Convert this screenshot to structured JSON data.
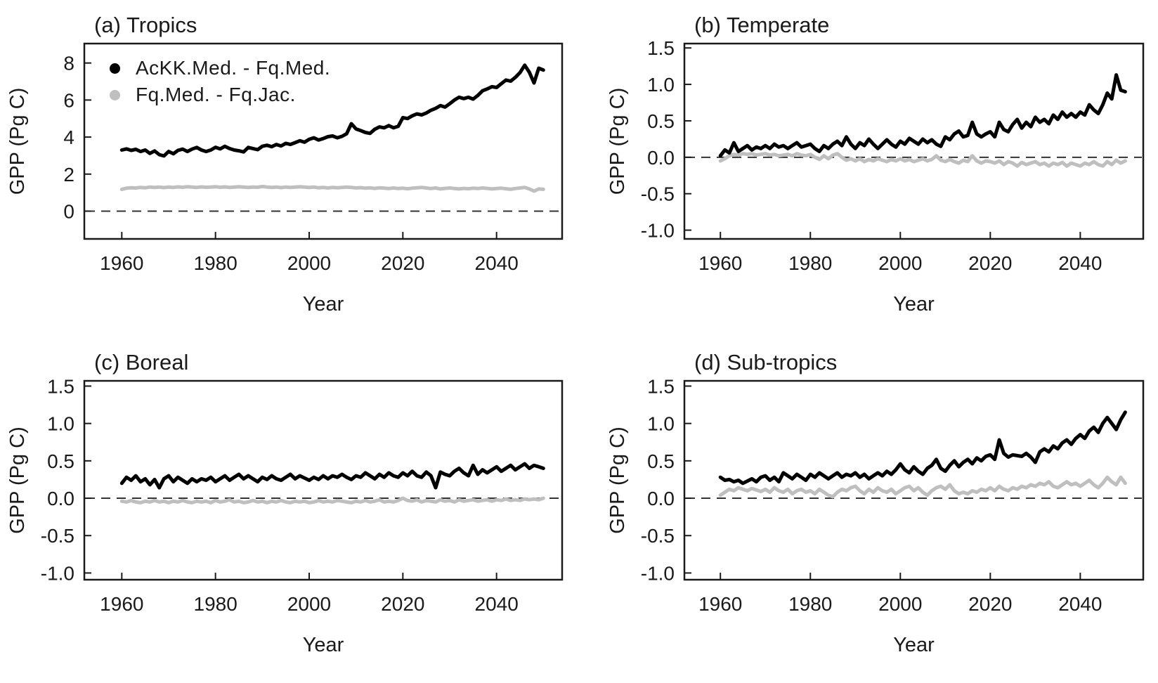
{
  "figure": {
    "background": "#ffffff",
    "text_color": "#1a1a1a",
    "axis_color": "#1a1a1a",
    "black_series_color": "#000000",
    "gray_series_color": "#bfbfbf"
  },
  "chart_data": [
    {
      "type": "line",
      "panel": "a",
      "title": "(a) Tropics",
      "xlabel": "Year",
      "ylabel": "GPP (Pg C)",
      "legend_visible": true,
      "legend_position": "top-left-inside",
      "grid": false,
      "zero_dashed_line": true,
      "x_start_year": 1960,
      "x_step_years": 1,
      "xlim": [
        1952,
        2054
      ],
      "ylim": [
        -1.5,
        9.05
      ],
      "x_ticks": [
        1960,
        1980,
        2000,
        2020,
        2040
      ],
      "x_tick_labels": [
        "1960",
        "1980",
        "2000",
        "2020",
        "2040"
      ],
      "y_ticks": [
        0,
        2,
        4,
        6,
        8
      ],
      "y_tick_labels": [
        "0",
        "2",
        "4",
        "6",
        "8"
      ],
      "series": [
        {
          "name": "Fq.Med. - Fq.Jac.",
          "color": "#bfbfbf",
          "values": [
            1.18,
            1.24,
            1.26,
            1.25,
            1.28,
            1.26,
            1.3,
            1.28,
            1.3,
            1.27,
            1.3,
            1.28,
            1.31,
            1.29,
            1.32,
            1.3,
            1.28,
            1.31,
            1.29,
            1.3,
            1.32,
            1.29,
            1.31,
            1.28,
            1.3,
            1.32,
            1.3,
            1.28,
            1.3,
            1.29,
            1.33,
            1.3,
            1.28,
            1.3,
            1.27,
            1.3,
            1.28,
            1.3,
            1.32,
            1.3,
            1.28,
            1.3,
            1.26,
            1.28,
            1.25,
            1.28,
            1.26,
            1.28,
            1.3,
            1.28,
            1.25,
            1.27,
            1.24,
            1.26,
            1.23,
            1.26,
            1.24,
            1.22,
            1.25,
            1.22,
            1.24,
            1.21,
            1.24,
            1.26,
            1.28,
            1.25,
            1.22,
            1.25,
            1.2,
            1.23,
            1.25,
            1.22,
            1.2,
            1.23,
            1.21,
            1.24,
            1.22,
            1.25,
            1.23,
            1.2,
            1.22,
            1.24,
            1.21,
            1.18,
            1.22,
            1.25,
            1.28,
            1.2,
            1.08,
            1.2,
            1.18
          ]
        },
        {
          "name": "AcKK.Med. - Fq.Med.",
          "color": "#000000",
          "values": [
            3.3,
            3.36,
            3.28,
            3.34,
            3.22,
            3.3,
            3.12,
            3.25,
            3.05,
            2.98,
            3.22,
            3.1,
            3.28,
            3.35,
            3.22,
            3.35,
            3.44,
            3.3,
            3.22,
            3.3,
            3.45,
            3.36,
            3.5,
            3.38,
            3.3,
            3.26,
            3.2,
            3.44,
            3.38,
            3.32,
            3.5,
            3.56,
            3.48,
            3.6,
            3.52,
            3.66,
            3.6,
            3.7,
            3.8,
            3.72,
            3.88,
            3.96,
            3.84,
            3.92,
            4.02,
            4.06,
            3.96,
            4.04,
            4.18,
            4.72,
            4.44,
            4.35,
            4.25,
            4.2,
            4.42,
            4.55,
            4.5,
            4.62,
            4.5,
            4.58,
            5.05,
            5.0,
            5.15,
            5.25,
            5.2,
            5.3,
            5.45,
            5.55,
            5.7,
            5.62,
            5.8,
            6.0,
            6.15,
            6.08,
            6.15,
            6.05,
            6.25,
            6.5,
            6.6,
            6.72,
            6.68,
            6.88,
            7.08,
            7.02,
            7.22,
            7.48,
            7.88,
            7.5,
            6.92,
            7.72,
            7.62
          ]
        }
      ]
    },
    {
      "type": "line",
      "panel": "b",
      "title": "(b) Temperate",
      "xlabel": "Year",
      "ylabel": "GPP (Pg C)",
      "legend_visible": false,
      "grid": false,
      "zero_dashed_line": true,
      "x_start_year": 1960,
      "x_step_years": 1,
      "xlim": [
        1952,
        2054
      ],
      "ylim": [
        -1.12,
        1.56
      ],
      "x_ticks": [
        1960,
        1980,
        2000,
        2020,
        2040
      ],
      "x_tick_labels": [
        "1960",
        "1980",
        "2000",
        "2020",
        "2040"
      ],
      "y_ticks": [
        -1.0,
        -0.5,
        0.0,
        0.5,
        1.0,
        1.5
      ],
      "y_tick_labels": [
        "-1.0",
        "-0.5",
        "0.0",
        "0.5",
        "1.0",
        "1.5"
      ],
      "series": [
        {
          "name": "Fq.Med. - Fq.Jac.",
          "color": "#bfbfbf",
          "values": [
            -0.05,
            -0.02,
            0.02,
            0.04,
            0.03,
            0.05,
            0.04,
            0.05,
            0.03,
            0.04,
            0.05,
            0.03,
            0.04,
            0.02,
            0.03,
            0.04,
            0.02,
            0.05,
            0.03,
            0.02,
            0.04,
            0.0,
            -0.03,
            0.02,
            -0.02,
            0.03,
            0.05,
            0.0,
            -0.04,
            -0.02,
            -0.05,
            -0.02,
            -0.06,
            -0.03,
            -0.05,
            -0.02,
            -0.04,
            -0.06,
            -0.03,
            -0.05,
            -0.02,
            -0.05,
            -0.03,
            -0.06,
            -0.04,
            -0.02,
            -0.05,
            -0.03,
            0.02,
            -0.04,
            -0.06,
            -0.03,
            -0.06,
            -0.08,
            -0.04,
            -0.06,
            0.02,
            -0.05,
            -0.08,
            -0.05,
            -0.06,
            -0.08,
            -0.05,
            -0.1,
            -0.06,
            -0.08,
            -0.12,
            -0.07,
            -0.1,
            -0.08,
            -0.06,
            -0.1,
            -0.08,
            -0.12,
            -0.08,
            -0.1,
            -0.07,
            -0.12,
            -0.08,
            -0.1,
            -0.12,
            -0.08,
            -0.1,
            -0.06,
            -0.1,
            -0.12,
            -0.06,
            -0.1,
            -0.04,
            -0.08,
            -0.05
          ]
        },
        {
          "name": "AcKK.Med. - Fq.Med.",
          "color": "#000000",
          "values": [
            0.02,
            0.1,
            0.06,
            0.2,
            0.08,
            0.12,
            0.16,
            0.1,
            0.14,
            0.12,
            0.16,
            0.12,
            0.18,
            0.14,
            0.16,
            0.12,
            0.16,
            0.2,
            0.14,
            0.16,
            0.18,
            0.12,
            0.08,
            0.16,
            0.12,
            0.18,
            0.22,
            0.16,
            0.28,
            0.18,
            0.12,
            0.2,
            0.16,
            0.25,
            0.18,
            0.12,
            0.18,
            0.24,
            0.18,
            0.14,
            0.22,
            0.18,
            0.26,
            0.22,
            0.18,
            0.25,
            0.2,
            0.24,
            0.18,
            0.15,
            0.28,
            0.24,
            0.32,
            0.36,
            0.28,
            0.3,
            0.48,
            0.32,
            0.28,
            0.32,
            0.35,
            0.28,
            0.48,
            0.38,
            0.35,
            0.45,
            0.52,
            0.4,
            0.48,
            0.42,
            0.55,
            0.48,
            0.52,
            0.46,
            0.58,
            0.52,
            0.62,
            0.55,
            0.6,
            0.55,
            0.62,
            0.58,
            0.72,
            0.65,
            0.6,
            0.72,
            0.88,
            0.8,
            1.13,
            0.92,
            0.9
          ]
        }
      ]
    },
    {
      "type": "line",
      "panel": "c",
      "title": "(c) Boreal",
      "xlabel": "Year",
      "ylabel": "GPP (Pg C)",
      "legend_visible": false,
      "grid": false,
      "zero_dashed_line": true,
      "x_start_year": 1960,
      "x_step_years": 1,
      "xlim": [
        1952,
        2054
      ],
      "ylim": [
        -1.09,
        1.57
      ],
      "x_ticks": [
        1960,
        1980,
        2000,
        2020,
        2040
      ],
      "x_tick_labels": [
        "1960",
        "1980",
        "2000",
        "2020",
        "2040"
      ],
      "y_ticks": [
        -1.0,
        -0.5,
        0.0,
        0.5,
        1.0,
        1.5
      ],
      "y_tick_labels": [
        "-1.0",
        "-0.5",
        "0.0",
        "0.5",
        "1.0",
        "1.5"
      ],
      "series": [
        {
          "name": "Fq.Med. - Fq.Jac.",
          "color": "#bfbfbf",
          "values": [
            -0.04,
            -0.05,
            -0.03,
            -0.05,
            -0.06,
            -0.04,
            -0.05,
            -0.03,
            -0.05,
            -0.04,
            -0.06,
            -0.04,
            -0.05,
            -0.03,
            -0.05,
            -0.06,
            -0.04,
            -0.05,
            -0.04,
            -0.06,
            -0.03,
            -0.05,
            -0.04,
            -0.02,
            -0.05,
            -0.04,
            -0.06,
            -0.05,
            -0.03,
            -0.05,
            -0.04,
            -0.06,
            -0.04,
            -0.05,
            -0.03,
            -0.05,
            -0.06,
            -0.04,
            -0.05,
            -0.04,
            -0.06,
            -0.05,
            -0.03,
            -0.05,
            -0.04,
            -0.05,
            -0.03,
            -0.04,
            -0.05,
            -0.06,
            -0.04,
            -0.05,
            -0.03,
            -0.05,
            -0.04,
            -0.02,
            -0.05,
            -0.04,
            -0.05,
            -0.03,
            0.0,
            -0.03,
            -0.04,
            -0.02,
            -0.05,
            -0.03,
            -0.04,
            -0.05,
            -0.02,
            -0.04,
            -0.03,
            -0.05,
            -0.02,
            -0.04,
            -0.03,
            -0.02,
            -0.04,
            -0.03,
            -0.02,
            -0.04,
            -0.02,
            -0.03,
            -0.01,
            -0.03,
            -0.02,
            -0.03,
            -0.01,
            -0.02,
            -0.01,
            -0.02,
            0.0
          ]
        },
        {
          "name": "AcKK.Med. - Fq.Med.",
          "color": "#000000",
          "values": [
            0.2,
            0.28,
            0.24,
            0.3,
            0.22,
            0.26,
            0.18,
            0.25,
            0.14,
            0.26,
            0.3,
            0.22,
            0.28,
            0.24,
            0.2,
            0.26,
            0.22,
            0.26,
            0.24,
            0.28,
            0.22,
            0.26,
            0.3,
            0.24,
            0.28,
            0.32,
            0.26,
            0.3,
            0.26,
            0.22,
            0.28,
            0.25,
            0.3,
            0.26,
            0.24,
            0.28,
            0.32,
            0.26,
            0.3,
            0.27,
            0.24,
            0.28,
            0.25,
            0.3,
            0.26,
            0.3,
            0.28,
            0.32,
            0.28,
            0.25,
            0.3,
            0.28,
            0.34,
            0.3,
            0.26,
            0.32,
            0.28,
            0.34,
            0.3,
            0.28,
            0.34,
            0.3,
            0.36,
            0.3,
            0.28,
            0.35,
            0.3,
            0.14,
            0.35,
            0.32,
            0.3,
            0.36,
            0.4,
            0.34,
            0.3,
            0.44,
            0.32,
            0.38,
            0.34,
            0.38,
            0.42,
            0.36,
            0.4,
            0.44,
            0.38,
            0.42,
            0.46,
            0.4,
            0.44,
            0.42,
            0.4
          ]
        }
      ]
    },
    {
      "type": "line",
      "panel": "d",
      "title": "(d) Sub-tropics",
      "xlabel": "Year",
      "ylabel": "GPP (Pg C)",
      "legend_visible": false,
      "grid": false,
      "zero_dashed_line": true,
      "x_start_year": 1960,
      "x_step_years": 1,
      "xlim": [
        1952,
        2054
      ],
      "ylim": [
        -1.09,
        1.57
      ],
      "x_ticks": [
        1960,
        1980,
        2000,
        2020,
        2040
      ],
      "x_tick_labels": [
        "1960",
        "1980",
        "2000",
        "2020",
        "2040"
      ],
      "y_ticks": [
        -1.0,
        -0.5,
        0.0,
        0.5,
        1.0,
        1.5
      ],
      "y_tick_labels": [
        "-1.0",
        "-0.5",
        "0.0",
        "0.5",
        "1.0",
        "1.5"
      ],
      "series": [
        {
          "name": "Fq.Med. - Fq.Jac.",
          "color": "#bfbfbf",
          "values": [
            0.04,
            0.08,
            0.12,
            0.1,
            0.14,
            0.12,
            0.1,
            0.13,
            0.11,
            0.09,
            0.12,
            0.08,
            0.14,
            0.1,
            0.08,
            0.12,
            0.06,
            0.1,
            0.12,
            0.08,
            0.1,
            0.06,
            0.12,
            0.08,
            0.04,
            0.02,
            0.08,
            0.12,
            0.1,
            0.14,
            0.16,
            0.1,
            0.06,
            0.12,
            0.08,
            0.14,
            0.1,
            0.08,
            0.12,
            0.06,
            0.1,
            0.14,
            0.16,
            0.1,
            0.14,
            0.08,
            0.04,
            0.1,
            0.14,
            0.16,
            0.12,
            0.18,
            0.1,
            0.06,
            0.08,
            0.06,
            0.1,
            0.08,
            0.12,
            0.1,
            0.14,
            0.1,
            0.16,
            0.12,
            0.1,
            0.14,
            0.12,
            0.16,
            0.14,
            0.18,
            0.16,
            0.2,
            0.18,
            0.22,
            0.16,
            0.14,
            0.18,
            0.22,
            0.18,
            0.2,
            0.16,
            0.2,
            0.24,
            0.18,
            0.14,
            0.2,
            0.28,
            0.22,
            0.18,
            0.28,
            0.2
          ]
        },
        {
          "name": "AcKK.Med. - Fq.Med.",
          "color": "#000000",
          "values": [
            0.28,
            0.24,
            0.25,
            0.22,
            0.24,
            0.2,
            0.23,
            0.26,
            0.22,
            0.28,
            0.3,
            0.24,
            0.28,
            0.22,
            0.34,
            0.3,
            0.26,
            0.32,
            0.28,
            0.24,
            0.32,
            0.28,
            0.34,
            0.3,
            0.26,
            0.3,
            0.34,
            0.28,
            0.32,
            0.3,
            0.34,
            0.28,
            0.32,
            0.26,
            0.3,
            0.34,
            0.3,
            0.36,
            0.32,
            0.38,
            0.46,
            0.38,
            0.34,
            0.42,
            0.36,
            0.32,
            0.4,
            0.44,
            0.52,
            0.4,
            0.36,
            0.44,
            0.5,
            0.42,
            0.48,
            0.52,
            0.46,
            0.54,
            0.5,
            0.56,
            0.58,
            0.52,
            0.78,
            0.6,
            0.55,
            0.58,
            0.57,
            0.56,
            0.6,
            0.55,
            0.48,
            0.62,
            0.66,
            0.62,
            0.7,
            0.66,
            0.74,
            0.78,
            0.72,
            0.8,
            0.85,
            0.8,
            0.9,
            0.95,
            0.88,
            1.0,
            1.08,
            1.0,
            0.92,
            1.05,
            1.15
          ]
        }
      ]
    }
  ]
}
